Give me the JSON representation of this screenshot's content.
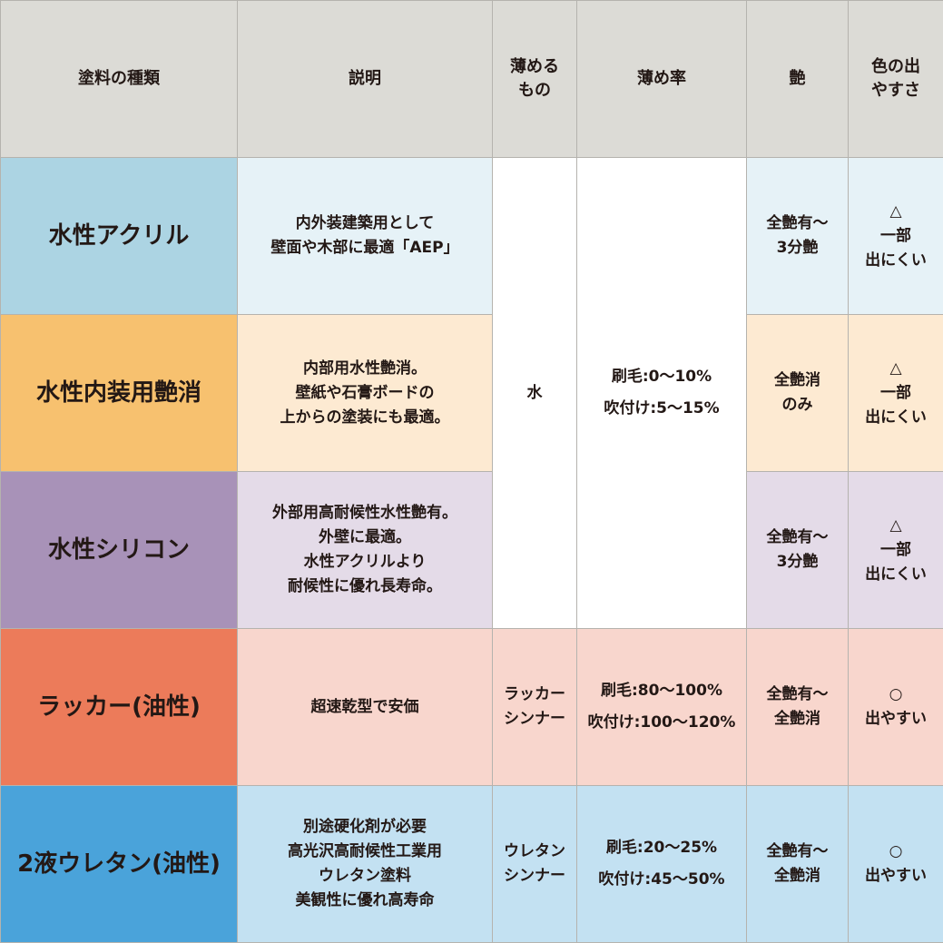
{
  "headers": [
    "塗料の種類",
    "説明",
    "薄める\nもの",
    "薄め率",
    "艶",
    "色の出\nやすさ"
  ],
  "rows": [
    {
      "type": "水性アクリル",
      "description": "内外装建築用として\n壁面や木部に最適「AEP」",
      "thinner": "水",
      "ratio": "刷毛:0〜10%\n吹付け:5〜15%",
      "gloss": "全艶有〜\n3分艶",
      "color": "△\n一部\n出にくい",
      "type_color": "#acd4e3",
      "cell_color": "#e6f2f7"
    },
    {
      "type": "水性内装用艶消",
      "description": "内部用水性艶消。\n壁紙や石膏ボードの\n上からの塗装にも最適。",
      "gloss": "全艶消\nのみ",
      "color": "△\n一部\n出にくい",
      "type_color": "#f7c16f",
      "cell_color": "#fdead2"
    },
    {
      "type": "水性シリコン",
      "description": "外部用高耐候性水性艶有。\n外壁に最適。\n水性アクリルより\n耐候性に優れ長寿命。",
      "gloss": "全艶有〜\n3分艶",
      "color": "△\n一部\n出にくい",
      "type_color": "#a892b8",
      "cell_color": "#e4dbe8"
    },
    {
      "type": "ラッカー(油性)",
      "description": "超速乾型で安価",
      "thinner": "ラッカー\nシンナー",
      "ratio": "刷毛:80〜100%\n吹付け:100〜120%",
      "gloss": "全艶有〜\n全艶消",
      "color": "○\n出やすい",
      "type_color": "#ec7b5a",
      "cell_color": "#f8d6cd"
    },
    {
      "type": "2液ウレタン(油性)",
      "description": "別途硬化剤が必要\n高光沢高耐候性工業用\nウレタン塗料\n美観性に優れ高寿命",
      "thinner": "ウレタン\nシンナー",
      "ratio": "刷毛:20〜25%\n吹付け:45〜50%",
      "gloss": "全艶有〜\n全艶消",
      "color": "○\n出やすい",
      "type_color": "#4aa3da",
      "cell_color": "#c3e1f2"
    }
  ]
}
